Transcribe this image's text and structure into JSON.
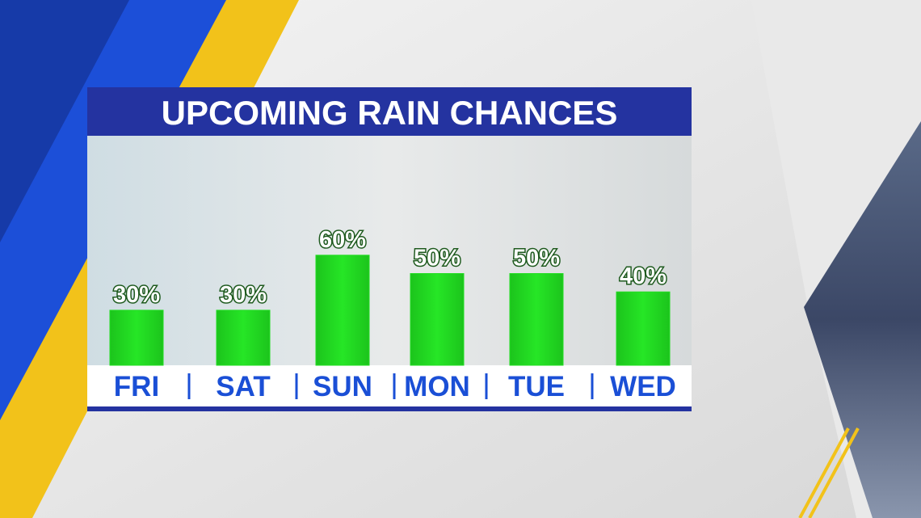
{
  "chart_data": {
    "type": "bar",
    "title": "UPCOMING RAIN CHANCES",
    "categories": [
      "FRI",
      "SAT",
      "SUN",
      "MON",
      "TUE",
      "WED"
    ],
    "values": [
      30,
      30,
      60,
      50,
      50,
      40
    ],
    "value_labels": [
      "30%",
      "30%",
      "60%",
      "50%",
      "50%",
      "40%"
    ],
    "color": "#22dd22"
  }
}
